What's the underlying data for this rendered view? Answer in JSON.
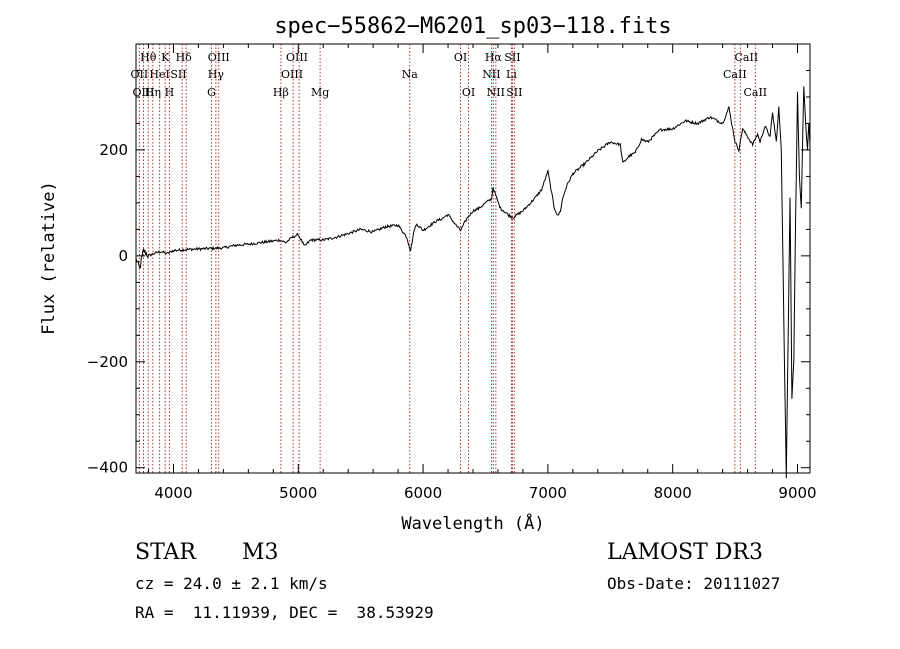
{
  "chart_data": {
    "type": "line",
    "title": "spec−55862−M6201_sp03−118.fits",
    "xlabel": "Wavelength (Å)",
    "ylabel": "Flux (relative)",
    "xlim": [
      3700,
      9100
    ],
    "ylim": [
      -410,
      400
    ],
    "xticks": [
      4000,
      5000,
      6000,
      7000,
      8000,
      9000
    ],
    "yticks": [
      -400,
      -200,
      0,
      200
    ],
    "ytick_labels": [
      "−400",
      "−200",
      "0",
      "200"
    ],
    "series": [
      {
        "name": "flux",
        "x": [
          3700,
          3730,
          3760,
          3800,
          3850,
          3900,
          3950,
          4000,
          4100,
          4200,
          4300,
          4400,
          4500,
          4600,
          4700,
          4800,
          4850,
          4900,
          4950,
          5000,
          5050,
          5100,
          5200,
          5300,
          5400,
          5500,
          5600,
          5700,
          5800,
          5870,
          5900,
          5930,
          5950,
          6000,
          6100,
          6150,
          6200,
          6250,
          6300,
          6350,
          6400,
          6450,
          6500,
          6550,
          6560,
          6580,
          6620,
          6680,
          6720,
          6800,
          6900,
          6950,
          7000,
          7050,
          7080,
          7100,
          7120,
          7150,
          7200,
          7300,
          7400,
          7500,
          7580,
          7600,
          7650,
          7700,
          7750,
          7800,
          7900,
          8000,
          8100,
          8200,
          8300,
          8400,
          8450,
          8500,
          8530,
          8560,
          8600,
          8640,
          8680,
          8700,
          8740,
          8780,
          8800,
          8830,
          8850,
          8870,
          8890,
          8910,
          8925,
          8940,
          8955,
          8970,
          8985,
          9000,
          9015,
          9030,
          9050,
          9070,
          9080,
          9090,
          9100
        ],
        "y": [
          -5,
          -25,
          10,
          0,
          5,
          8,
          4,
          10,
          12,
          13,
          14,
          15,
          20,
          22,
          25,
          28,
          30,
          25,
          35,
          40,
          18,
          30,
          30,
          35,
          42,
          50,
          45,
          55,
          58,
          35,
          10,
          50,
          60,
          48,
          65,
          70,
          78,
          62,
          48,
          70,
          85,
          90,
          100,
          108,
          130,
          115,
          90,
          78,
          72,
          85,
          110,
          125,
          160,
          92,
          75,
          85,
          110,
          132,
          155,
          175,
          198,
          215,
          210,
          175,
          188,
          195,
          220,
          215,
          238,
          240,
          255,
          250,
          262,
          250,
          280,
          215,
          200,
          240,
          225,
          210,
          230,
          215,
          245,
          225,
          270,
          215,
          280,
          200,
          -120,
          -420,
          -150,
          110,
          -270,
          -200,
          70,
          310,
          150,
          90,
          320,
          230,
          200,
          250,
          210
        ]
      }
    ],
    "line_colors": {
      "spectrum": "#000000",
      "marker": "#b03030"
    },
    "spectral_lines": [
      {
        "label": "Hθ",
        "x": 3798,
        "row": 1,
        "lx": 3798
      },
      {
        "label": "K",
        "x": 3934,
        "row": 1,
        "lx": 3934
      },
      {
        "label": "Hδ",
        "x": 4102,
        "row": 1,
        "lx": 4082
      },
      {
        "label": "OIII",
        "x": 4363,
        "row": 1,
        "lx": 4363
      },
      {
        "label": "OIII",
        "x": 4959,
        "row": 1,
        "lx": 4990
      },
      {
        "label": "OI",
        "x": 6300,
        "row": 1,
        "lx": 6300
      },
      {
        "label": "Hα",
        "x": 6563,
        "row": 1,
        "lx": 6563
      },
      {
        "label": "SII",
        "x": 6716,
        "row": 1,
        "lx": 6716
      },
      {
        "label": "CaII",
        "x": 8542,
        "row": 1,
        "lx": 8590
      },
      {
        "label": "OII",
        "x": 3727,
        "row": 2,
        "lx": 3727
      },
      {
        "label": "HeI",
        "x": 3889,
        "row": 2,
        "lx": 3889
      },
      {
        "label": "SII",
        "x": 4070,
        "row": 2,
        "lx": 4040
      },
      {
        "label": "Hγ",
        "x": 4340,
        "row": 2,
        "lx": 4340
      },
      {
        "label": "OIII",
        "x": 5007,
        "row": 2,
        "lx": 4950
      },
      {
        "label": "Na",
        "x": 5893,
        "row": 2,
        "lx": 5893
      },
      {
        "label": "NII",
        "x": 6548,
        "row": 2,
        "lx": 6548
      },
      {
        "label": "Li",
        "x": 6708,
        "row": 2,
        "lx": 6708
      },
      {
        "label": "CaII",
        "x": 8498,
        "row": 2,
        "lx": 8498
      },
      {
        "label": "OIII",
        "x": 3760,
        "row": 3,
        "lx": 3760
      },
      {
        "label": "Hη",
        "x": 3835,
        "row": 3,
        "lx": 3835
      },
      {
        "label": "H",
        "x": 3968,
        "row": 3,
        "lx": 3968
      },
      {
        "label": "G",
        "x": 4305,
        "row": 3,
        "lx": 4305
      },
      {
        "label": "Hβ",
        "x": 4861,
        "row": 3,
        "lx": 4861
      },
      {
        "label": "Mg",
        "x": 5175,
        "row": 3,
        "lx": 5175
      },
      {
        "label": "OI",
        "x": 6364,
        "row": 3,
        "lx": 6364
      },
      {
        "label": "NII",
        "x": 6583,
        "row": 3,
        "lx": 6583
      },
      {
        "label": "SII",
        "x": 6731,
        "row": 3,
        "lx": 6731
      },
      {
        "label": "CaII",
        "x": 8662,
        "row": 3,
        "lx": 8662
      }
    ]
  },
  "info": {
    "object_class": "STAR",
    "subclass": "M3",
    "survey": "LAMOST DR3",
    "redshift_line": "cz = 24.0 ± 2.1 km/s",
    "obs_date_line": "Obs-Date: 20111027",
    "coords_line": "RA =  11.11939, DEC =  38.53929"
  }
}
